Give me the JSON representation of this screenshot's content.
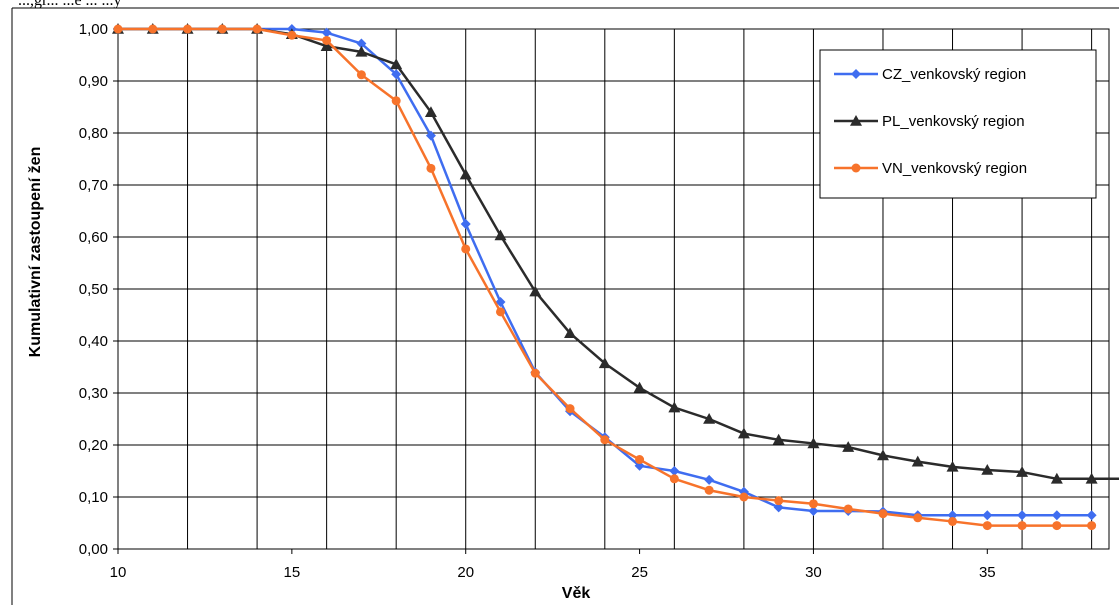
{
  "header_fragment": "...,gr...  ...e ... ...y",
  "chart_data": {
    "type": "line",
    "xlabel": "Věk",
    "ylabel": "Kumulativní zastoupení žen",
    "xlim": [
      10,
      38.5
    ],
    "ylim": [
      0,
      1
    ],
    "x_ticks": [
      10,
      15,
      20,
      25,
      30,
      35
    ],
    "x_tick_labels": [
      "10",
      "15",
      "20",
      "25",
      "30",
      "35"
    ],
    "y_ticks": [
      0,
      0.1,
      0.2,
      0.3,
      0.4,
      0.5,
      0.6,
      0.7,
      0.8,
      0.9,
      1.0
    ],
    "y_tick_labels": [
      "0,00",
      "0,10",
      "0,20",
      "0,30",
      "0,40",
      "0,50",
      "0,60",
      "0,70",
      "0,80",
      "0,90",
      "1,00"
    ],
    "grid": true,
    "legend_position": "top-right",
    "series": [
      {
        "name": "CZ_venkovský region",
        "color": "#3f6df0",
        "marker": "diamond",
        "x": [
          10,
          11,
          12,
          13,
          14,
          15,
          16,
          17,
          18,
          19,
          20,
          21,
          22,
          23,
          24,
          25,
          26,
          27,
          28,
          29,
          30,
          31,
          32,
          33,
          34,
          35,
          36,
          37,
          38
        ],
        "values": [
          1.0,
          1.0,
          1.0,
          1.0,
          1.0,
          1.0,
          0.993,
          0.972,
          0.913,
          0.795,
          0.625,
          0.475,
          0.34,
          0.265,
          0.215,
          0.16,
          0.15,
          0.133,
          0.11,
          0.08,
          0.073,
          0.073,
          0.072,
          0.065,
          0.065,
          0.065,
          0.065,
          0.065,
          0.065
        ]
      },
      {
        "name": "PL_venkovský region",
        "color": "#2b2b2b",
        "marker": "triangle",
        "x": [
          10,
          11,
          12,
          13,
          14,
          15,
          16,
          17,
          18,
          19,
          20,
          21,
          22,
          23,
          24,
          25,
          26,
          27,
          28,
          29,
          30,
          31,
          32,
          33,
          34,
          35,
          36,
          37,
          38,
          39
        ],
        "values": [
          1.0,
          1.0,
          1.0,
          1.0,
          1.0,
          0.99,
          0.967,
          0.956,
          0.932,
          0.84,
          0.72,
          0.603,
          0.495,
          0.415,
          0.357,
          0.31,
          0.272,
          0.25,
          0.222,
          0.21,
          0.203,
          0.196,
          0.18,
          0.168,
          0.158,
          0.152,
          0.148,
          0.135,
          0.135,
          0.135
        ]
      },
      {
        "name": "VN_venkovský region",
        "color": "#f7732b",
        "marker": "circle",
        "x": [
          10,
          11,
          12,
          13,
          14,
          15,
          16,
          17,
          18,
          19,
          20,
          21,
          22,
          23,
          24,
          25,
          26,
          27,
          28,
          29,
          30,
          31,
          32,
          33,
          34,
          35,
          36,
          37,
          38
        ],
        "values": [
          1.0,
          1.0,
          1.0,
          1.0,
          1.0,
          0.988,
          0.978,
          0.912,
          0.862,
          0.732,
          0.577,
          0.456,
          0.338,
          0.27,
          0.21,
          0.172,
          0.135,
          0.113,
          0.1,
          0.093,
          0.087,
          0.077,
          0.068,
          0.06,
          0.053,
          0.045,
          0.045,
          0.045,
          0.045
        ]
      }
    ]
  }
}
